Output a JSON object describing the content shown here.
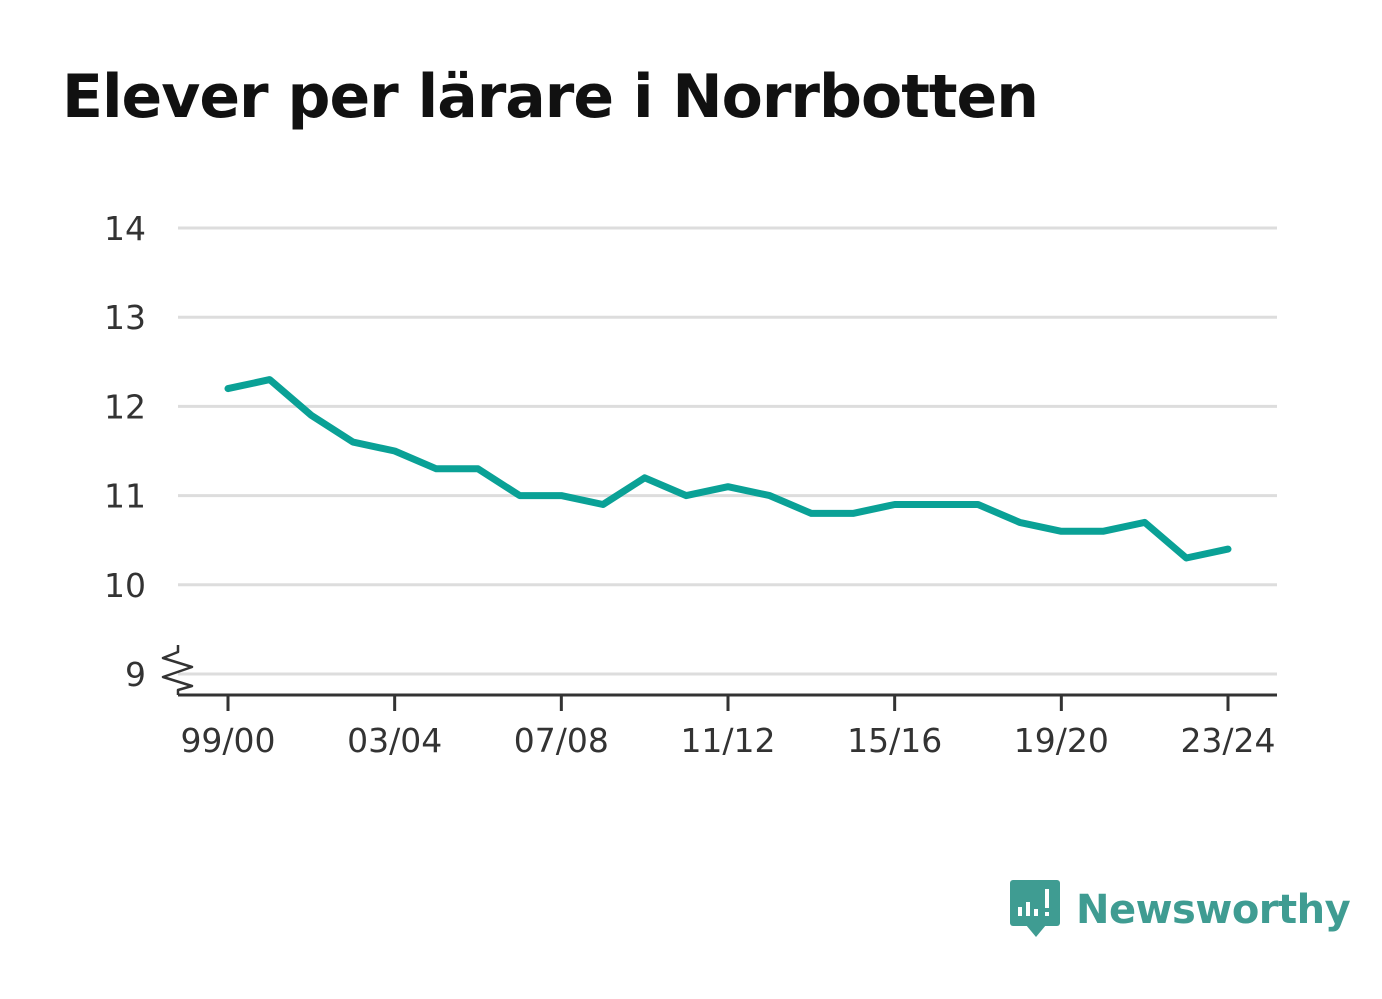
{
  "colors": {
    "line": "#0aa196",
    "grid": "#dddddd",
    "axis": "#333333",
    "text": "#333333",
    "title": "#111111",
    "brand": "#3f9c92"
  },
  "brand": {
    "name": "Newsworthy",
    "icon": "newsworthy-logo-icon"
  },
  "chart_data": {
    "type": "line",
    "title": "Elever per lärare i Norrbotten",
    "xlabel": "",
    "ylabel": "",
    "grid": true,
    "y_axis_break": true,
    "ylim": [
      9,
      14
    ],
    "yticks": [
      9,
      10,
      11,
      12,
      13,
      14
    ],
    "x": [
      "99/00",
      "00/01",
      "01/02",
      "02/03",
      "03/04",
      "04/05",
      "05/06",
      "06/07",
      "07/08",
      "08/09",
      "09/10",
      "10/11",
      "11/12",
      "12/13",
      "13/14",
      "14/15",
      "15/16",
      "16/17",
      "17/18",
      "18/19",
      "19/20",
      "20/21",
      "21/22",
      "22/23",
      "23/24"
    ],
    "xticks": [
      "99/00",
      "03/04",
      "07/08",
      "11/12",
      "15/16",
      "19/20",
      "23/24"
    ],
    "series": [
      {
        "values": [
          12.2,
          12.3,
          11.9,
          11.6,
          11.5,
          11.3,
          11.3,
          11.0,
          11.0,
          10.9,
          11.2,
          11.0,
          11.1,
          11.0,
          10.8,
          10.8,
          10.9,
          10.9,
          10.9,
          10.7,
          10.6,
          10.6,
          10.7,
          10.3,
          10.4
        ]
      }
    ]
  }
}
